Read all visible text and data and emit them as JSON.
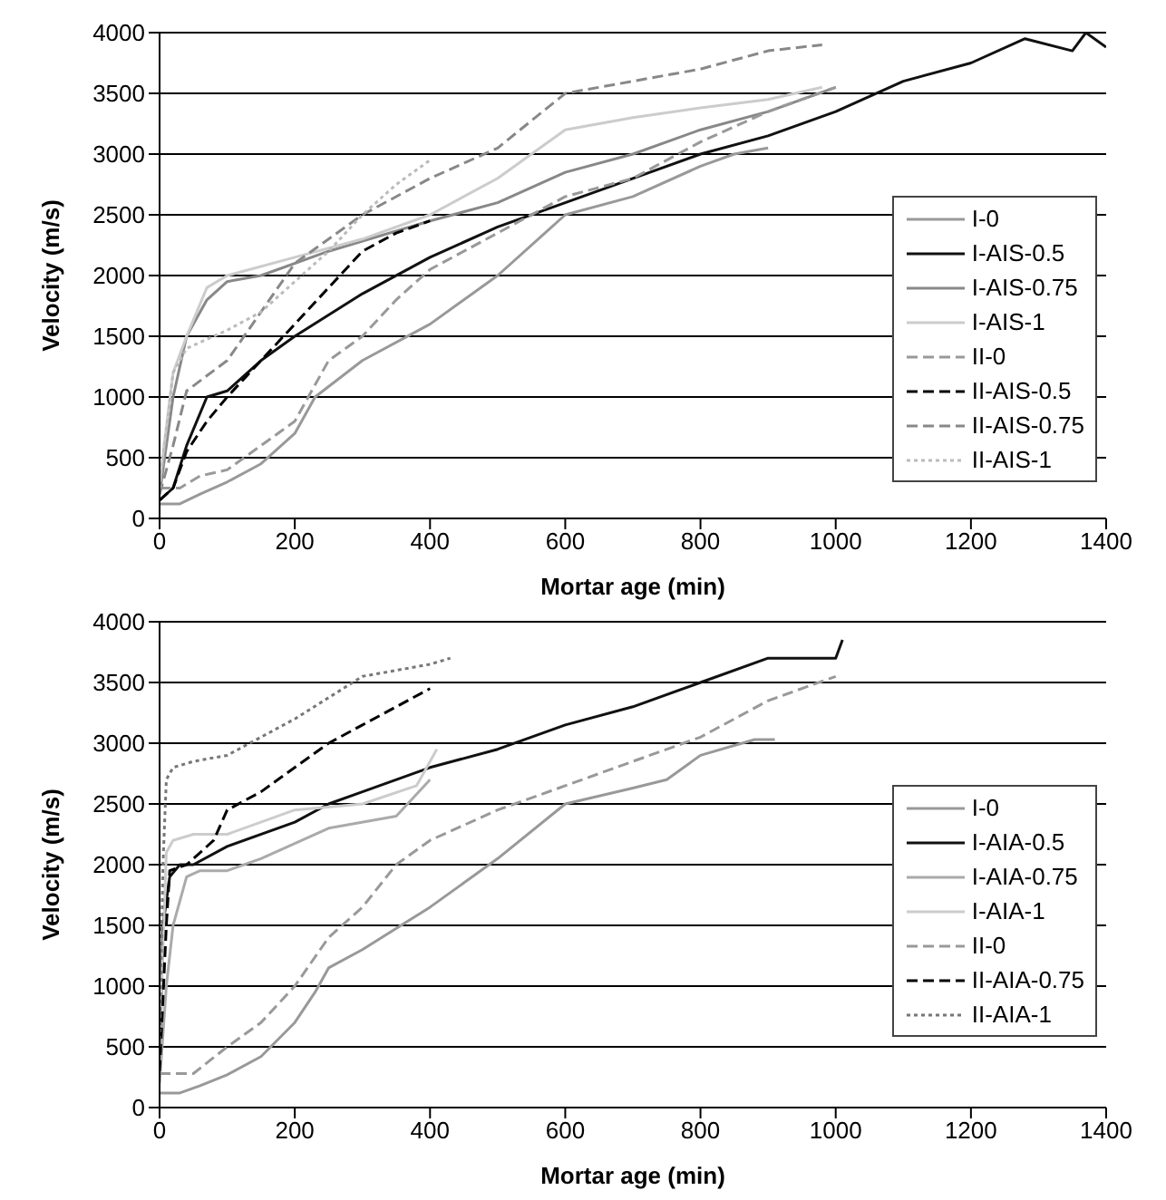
{
  "chart_data": [
    {
      "type": "line",
      "xlabel": "Mortar age (min)",
      "ylabel": "Velocity (m/s)",
      "xlim": [
        0,
        1400
      ],
      "xticks": [
        0,
        200,
        400,
        600,
        800,
        1000,
        1200,
        1400
      ],
      "ylim": [
        0,
        4000
      ],
      "yticks": [
        0,
        500,
        1000,
        1500,
        2000,
        2500,
        3000,
        3500,
        4000
      ],
      "grid": "y",
      "legend": "right",
      "marker": "none",
      "series": [
        {
          "name": "I-0",
          "color": "#999999",
          "line_style": "solid",
          "x": [
            0,
            30,
            60,
            100,
            150,
            200,
            230,
            300,
            400,
            500,
            600,
            700,
            800,
            850,
            900
          ],
          "values": [
            120,
            120,
            200,
            300,
            450,
            700,
            1000,
            1300,
            1600,
            2000,
            2500,
            2650,
            2900,
            3000,
            3050
          ]
        },
        {
          "name": "I-AIS-0.5",
          "color": "#111111",
          "line_style": "solid",
          "x": [
            0,
            20,
            40,
            70,
            100,
            150,
            200,
            300,
            400,
            500,
            600,
            700,
            800,
            900,
            1000,
            1100,
            1200,
            1280,
            1350,
            1370,
            1400
          ],
          "values": [
            150,
            250,
            600,
            1000,
            1050,
            1300,
            1500,
            1850,
            2150,
            2400,
            2600,
            2800,
            3000,
            3150,
            3350,
            3600,
            3750,
            3950,
            3850,
            4000,
            3880
          ]
        },
        {
          "name": "I-AIS-0.75",
          "color": "#888888",
          "line_style": "solid",
          "x": [
            0,
            20,
            40,
            70,
            100,
            150,
            250,
            400,
            500,
            600,
            700,
            800,
            900,
            1000
          ],
          "values": [
            200,
            1000,
            1500,
            1800,
            1950,
            2000,
            2200,
            2450,
            2600,
            2850,
            3000,
            3200,
            3350,
            3550
          ]
        },
        {
          "name": "I-AIS-1",
          "color": "#cccccc",
          "line_style": "solid",
          "x": [
            0,
            20,
            40,
            70,
            100,
            200,
            300,
            400,
            500,
            600,
            700,
            800,
            900,
            980
          ],
          "values": [
            300,
            1200,
            1500,
            1900,
            2000,
            2150,
            2300,
            2500,
            2800,
            3200,
            3300,
            3380,
            3450,
            3550
          ]
        },
        {
          "name": "II-0",
          "color": "#999999",
          "line_style": "dashed",
          "x": [
            0,
            30,
            60,
            100,
            150,
            200,
            250,
            300,
            350,
            400,
            500,
            600,
            700,
            800,
            900,
            1000
          ],
          "values": [
            250,
            250,
            350,
            400,
            600,
            800,
            1300,
            1500,
            1800,
            2050,
            2350,
            2650,
            2800,
            3100,
            3350,
            3550
          ]
        },
        {
          "name": "II-AIS-0.5",
          "color": "#000000",
          "line_style": "dashed",
          "x": [
            0,
            20,
            40,
            70,
            100,
            150,
            200,
            250,
            300,
            350,
            400
          ],
          "values": [
            150,
            250,
            550,
            800,
            1000,
            1300,
            1600,
            1900,
            2200,
            2350,
            2450
          ]
        },
        {
          "name": "II-AIS-0.75",
          "color": "#888888",
          "line_style": "dashed",
          "x": [
            0,
            20,
            40,
            100,
            150,
            200,
            300,
            400,
            500,
            600,
            700,
            800,
            900,
            980
          ],
          "values": [
            200,
            600,
            1050,
            1300,
            1700,
            2100,
            2500,
            2800,
            3050,
            3500,
            3600,
            3700,
            3850,
            3900
          ]
        },
        {
          "name": "II-AIS-1",
          "color": "#bbbbbb",
          "line_style": "dotted",
          "x": [
            0,
            20,
            40,
            100,
            150,
            200,
            250,
            300,
            350,
            400
          ],
          "values": [
            250,
            1200,
            1400,
            1550,
            1700,
            1950,
            2200,
            2500,
            2750,
            2950
          ]
        }
      ]
    },
    {
      "type": "line",
      "xlabel": "Mortar age (min)",
      "ylabel": "Velocity (m/s)",
      "xlim": [
        0,
        1400
      ],
      "xticks": [
        0,
        200,
        400,
        600,
        800,
        1000,
        1200,
        1400
      ],
      "ylim": [
        0,
        4000
      ],
      "yticks": [
        0,
        500,
        1000,
        1500,
        2000,
        2500,
        3000,
        3500,
        4000
      ],
      "grid": "y",
      "legend": "right",
      "marker": "none",
      "series": [
        {
          "name": "I-0",
          "color": "#999999",
          "line_style": "solid",
          "x": [
            0,
            30,
            60,
            100,
            150,
            200,
            230,
            250,
            300,
            400,
            500,
            600,
            700,
            750,
            800,
            880,
            910
          ],
          "values": [
            120,
            120,
            180,
            270,
            420,
            700,
            950,
            1150,
            1300,
            1650,
            2050,
            2500,
            2630,
            2700,
            2900,
            3030,
            3030
          ]
        },
        {
          "name": "I-AIA-0.5",
          "color": "#111111",
          "line_style": "solid",
          "x": [
            0,
            5,
            15,
            30,
            50,
            100,
            200,
            250,
            300,
            400,
            500,
            600,
            700,
            800,
            900,
            1000,
            1010
          ],
          "values": [
            300,
            1500,
            1900,
            2000,
            2000,
            2150,
            2350,
            2500,
            2600,
            2800,
            2950,
            3150,
            3300,
            3500,
            3700,
            3700,
            3850
          ]
        },
        {
          "name": "I-AIA-0.75",
          "color": "#aaaaaa",
          "line_style": "solid",
          "x": [
            0,
            10,
            20,
            40,
            60,
            100,
            150,
            250,
            350,
            400
          ],
          "values": [
            200,
            1000,
            1500,
            1900,
            1950,
            1950,
            2050,
            2300,
            2400,
            2700
          ]
        },
        {
          "name": "I-AIA-1",
          "color": "#cccccc",
          "line_style": "solid",
          "x": [
            0,
            10,
            20,
            50,
            100,
            200,
            300,
            380,
            410
          ],
          "values": [
            500,
            2100,
            2200,
            2250,
            2250,
            2450,
            2500,
            2650,
            2950
          ]
        },
        {
          "name": "II-0",
          "color": "#999999",
          "line_style": "dashed",
          "x": [
            0,
            50,
            100,
            150,
            200,
            250,
            300,
            350,
            400,
            500,
            600,
            700,
            800,
            900,
            1000
          ],
          "values": [
            280,
            280,
            500,
            700,
            1000,
            1400,
            1650,
            2000,
            2200,
            2450,
            2650,
            2850,
            3050,
            3350,
            3550
          ]
        },
        {
          "name": "II-AIA-0.75",
          "color": "#000000",
          "line_style": "dashed",
          "x": [
            0,
            10,
            15,
            40,
            80,
            100,
            150,
            200,
            250,
            300,
            350,
            400
          ],
          "values": [
            300,
            1500,
            1950,
            2000,
            2200,
            2450,
            2600,
            2800,
            3000,
            3150,
            3300,
            3450
          ]
        },
        {
          "name": "II-AIA-1",
          "color": "#777777",
          "line_style": "dotted",
          "x": [
            0,
            5,
            10,
            20,
            50,
            100,
            200,
            300,
            400,
            430
          ],
          "values": [
            500,
            2000,
            2700,
            2800,
            2850,
            2900,
            3200,
            3550,
            3650,
            3700
          ]
        }
      ]
    }
  ]
}
